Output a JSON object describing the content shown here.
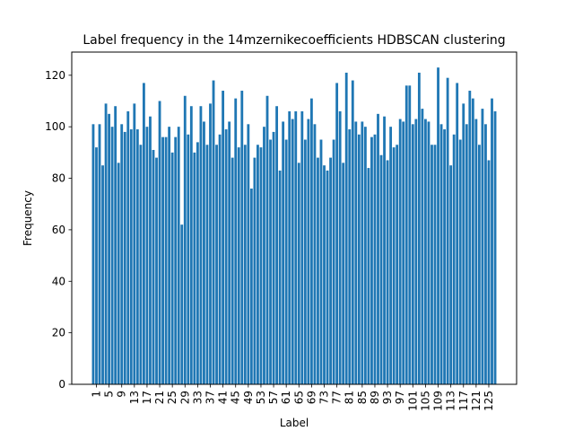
{
  "chart_data": {
    "type": "bar",
    "title": "Label frequency in the 14mzernikecoefficients HDBSCAN clustering",
    "xlabel": "Label",
    "ylabel": "Frequency",
    "ylim": [
      0,
      129
    ],
    "yticks": [
      0,
      20,
      40,
      60,
      80,
      100,
      120
    ],
    "xticks": [
      1,
      5,
      9,
      13,
      17,
      21,
      25,
      29,
      33,
      37,
      41,
      45,
      49,
      53,
      57,
      61,
      65,
      69,
      73,
      77,
      81,
      85,
      89,
      93,
      97,
      101,
      105,
      109,
      113,
      117,
      121,
      125
    ],
    "x_start": 0,
    "grid": false,
    "bar_color": "#1f77b4",
    "values": [
      101,
      92,
      101,
      85,
      109,
      105,
      100,
      108,
      86,
      101,
      98,
      106,
      99,
      109,
      99,
      93,
      117,
      100,
      104,
      91,
      88,
      110,
      96,
      96,
      100,
      90,
      96,
      100,
      62,
      112,
      97,
      108,
      90,
      94,
      108,
      102,
      93,
      109,
      118,
      93,
      97,
      114,
      99,
      102,
      88,
      111,
      92,
      114,
      93,
      101,
      76,
      88,
      93,
      92,
      100,
      112,
      95,
      98,
      108,
      83,
      102,
      95,
      106,
      103,
      106,
      86,
      106,
      95,
      103,
      111,
      101,
      88,
      95,
      85,
      83,
      88,
      95,
      117,
      106,
      86,
      121,
      99,
      118,
      102,
      97,
      102,
      100,
      84,
      96,
      97,
      105,
      89,
      104,
      87,
      100,
      92,
      93,
      103,
      102,
      116,
      116,
      101,
      103,
      121,
      107,
      103,
      102,
      93,
      93,
      123,
      101,
      99,
      119,
      85,
      97,
      117,
      95,
      109,
      101,
      114,
      111,
      103,
      93,
      107,
      101,
      87,
      111,
      106
    ]
  }
}
